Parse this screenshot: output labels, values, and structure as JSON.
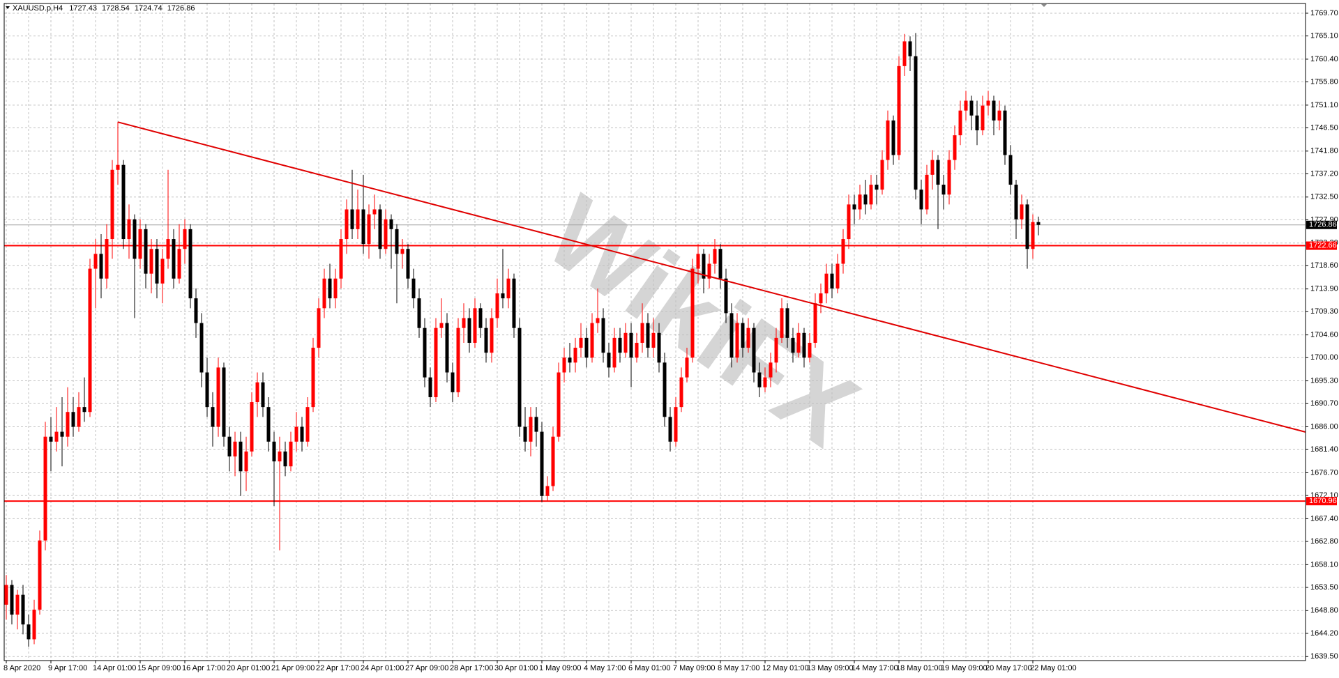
{
  "chart_data": {
    "type": "candlestick",
    "title": "XAUUSD.p,H4",
    "watermark": "WikiFX",
    "up_color": "#ff0000",
    "down_color": "#000000",
    "grid": true,
    "ylim": [
      1638.69,
      1771.67
    ],
    "yticks": [
      {
        "value": 1769.7,
        "label": "1769.70"
      },
      {
        "value": 1765.1,
        "label": "1765.10"
      },
      {
        "value": 1760.4,
        "label": "1760.40"
      },
      {
        "value": 1755.8,
        "label": "1755.80"
      },
      {
        "value": 1751.1,
        "label": "1751.10"
      },
      {
        "value": 1746.5,
        "label": "1746.50"
      },
      {
        "value": 1741.8,
        "label": "1741.80"
      },
      {
        "value": 1737.2,
        "label": "1737.20"
      },
      {
        "value": 1732.5,
        "label": "1732.50"
      },
      {
        "value": 1727.9,
        "label": "1727.90"
      },
      {
        "value": 1723.2,
        "label": "1723.20"
      },
      {
        "value": 1718.6,
        "label": "1718.60"
      },
      {
        "value": 1713.9,
        "label": "1713.90"
      },
      {
        "value": 1709.3,
        "label": "1709.30"
      },
      {
        "value": 1704.6,
        "label": "1704.60"
      },
      {
        "value": 1700,
        "label": "1700.00"
      },
      {
        "value": 1695.3,
        "label": "1695.30"
      },
      {
        "value": 1690.7,
        "label": "1690.70"
      },
      {
        "value": 1686,
        "label": "1686.00"
      },
      {
        "value": 1681.4,
        "label": "1681.40"
      },
      {
        "value": 1676.7,
        "label": "1676.70"
      },
      {
        "value": 1672.1,
        "label": "1672.10"
      },
      {
        "value": 1667.4,
        "label": "1667.40"
      },
      {
        "value": 1662.8,
        "label": "1662.80"
      },
      {
        "value": 1658.1,
        "label": "1658.10"
      },
      {
        "value": 1653.5,
        "label": "1653.50"
      },
      {
        "value": 1648.8,
        "label": "1648.80"
      },
      {
        "value": 1644.2,
        "label": "1644.20"
      },
      {
        "value": 1639.5,
        "label": "1639.50"
      }
    ],
    "levels": [
      {
        "value": 1722.66,
        "color": "#ff0000"
      },
      {
        "value": 1670.96,
        "color": "#ff0000"
      }
    ],
    "trendline": {
      "from": 1747.67,
      "to": 1684.94,
      "color": "#e00000"
    },
    "categories": [
      "8 Apr 2020",
      null,
      null,
      null,
      null,
      null,
      null,
      null,
      "9 Apr 17:00",
      null,
      null,
      null,
      null,
      null,
      null,
      null,
      "14 Apr 01:00",
      null,
      null,
      null,
      null,
      null,
      null,
      null,
      "15 Apr 09:00",
      null,
      null,
      null,
      null,
      null,
      null,
      null,
      "16 Apr 17:00",
      null,
      null,
      null,
      null,
      null,
      null,
      null,
      "20 Apr 01:00",
      null,
      null,
      null,
      null,
      null,
      null,
      null,
      "21 Apr 09:00",
      null,
      null,
      null,
      null,
      null,
      null,
      null,
      "22 Apr 17:00",
      null,
      null,
      null,
      null,
      null,
      null,
      null,
      "24 Apr 01:00",
      null,
      null,
      null,
      null,
      null,
      null,
      null,
      "27 Apr 09:00",
      null,
      null,
      null,
      null,
      null,
      null,
      null,
      "28 Apr 17:00",
      null,
      null,
      null,
      null,
      null,
      null,
      null,
      "30 Apr 01:00",
      null,
      null,
      null,
      null,
      null,
      null,
      null,
      "1 May 09:00",
      null,
      null,
      null,
      null,
      null,
      null,
      null,
      "4 May 17:00",
      null,
      null,
      null,
      null,
      null,
      null,
      null,
      "6 May 01:00",
      null,
      null,
      null,
      null,
      null,
      null,
      null,
      "7 May 09:00",
      null,
      null,
      null,
      null,
      null,
      null,
      null,
      "8 May 17:00",
      null,
      null,
      null,
      null,
      null,
      null,
      null,
      "12 May 01:00",
      null,
      null,
      null,
      null,
      null,
      null,
      null,
      "13 May 09:00",
      null,
      null,
      null,
      null,
      null,
      null,
      null,
      "14 May 17:00",
      null,
      null,
      null,
      null,
      null,
      null,
      null,
      "18 May 01:00",
      null,
      null,
      null,
      null,
      null,
      null,
      null,
      "19 May 09:00",
      null,
      null,
      null,
      null,
      null,
      null,
      null,
      "20 May 17:00",
      null,
      null,
      null,
      null,
      null,
      null,
      null,
      "22 May 01:00",
      null
    ],
    "candles": [
      [
        1650,
        1656,
        1647,
        1654
      ],
      [
        1654,
        1655,
        1646,
        1648
      ],
      [
        1648,
        1653,
        1645,
        1652
      ],
      [
        1652,
        1654,
        1644,
        1646
      ],
      [
        1646,
        1648,
        1641.5,
        1643
      ],
      [
        1643,
        1651,
        1642,
        1649
      ],
      [
        1649,
        1665,
        1648,
        1663
      ],
      [
        1663,
        1687,
        1661,
        1684
      ],
      [
        1684,
        1688,
        1677,
        1683
      ],
      [
        1683,
        1690,
        1681,
        1685
      ],
      [
        1685,
        1692,
        1678,
        1684
      ],
      [
        1684,
        1694,
        1682,
        1689
      ],
      [
        1689,
        1692,
        1684,
        1686
      ],
      [
        1686,
        1693,
        1685,
        1690
      ],
      [
        1690,
        1696,
        1687,
        1689
      ],
      [
        1689,
        1720,
        1688,
        1718
      ],
      [
        1718,
        1724,
        1710,
        1721
      ],
      [
        1721,
        1725,
        1712,
        1716
      ],
      [
        1716,
        1727,
        1714,
        1724
      ],
      [
        1724,
        1740,
        1720,
        1738
      ],
      [
        1738,
        1747.7,
        1735,
        1739
      ],
      [
        1739,
        1740,
        1722,
        1724
      ],
      [
        1724,
        1731,
        1720,
        1728
      ],
      [
        1728,
        1729,
        1708,
        1720
      ],
      [
        1720,
        1728,
        1718,
        1726
      ],
      [
        1726,
        1727,
        1714,
        1717
      ],
      [
        1717,
        1724,
        1713,
        1722
      ],
      [
        1722,
        1724,
        1712,
        1715
      ],
      [
        1715,
        1722,
        1711,
        1720
      ],
      [
        1720,
        1738,
        1718,
        1724
      ],
      [
        1724,
        1726,
        1714,
        1716
      ],
      [
        1716,
        1727,
        1715,
        1722
      ],
      [
        1722,
        1728,
        1719,
        1726
      ],
      [
        1726,
        1727,
        1710,
        1712
      ],
      [
        1712,
        1714,
        1704,
        1707
      ],
      [
        1707,
        1709,
        1694,
        1697
      ],
      [
        1697,
        1700,
        1688,
        1690
      ],
      [
        1690,
        1693,
        1682,
        1686
      ],
      [
        1686,
        1700,
        1684,
        1698
      ],
      [
        1698,
        1699,
        1682,
        1684
      ],
      [
        1684,
        1686,
        1677,
        1680
      ],
      [
        1680,
        1685,
        1676,
        1683
      ],
      [
        1683,
        1685,
        1672,
        1677
      ],
      [
        1677,
        1684,
        1673,
        1681
      ],
      [
        1681,
        1693,
        1680,
        1691
      ],
      [
        1691,
        1697,
        1688,
        1695
      ],
      [
        1695,
        1697,
        1688,
        1690
      ],
      [
        1690,
        1692,
        1681,
        1683
      ],
      [
        1683,
        1685,
        1670,
        1679
      ],
      [
        1679,
        1684,
        1661,
        1681
      ],
      [
        1681,
        1683,
        1676,
        1678
      ],
      [
        1678,
        1685,
        1677,
        1683
      ],
      [
        1683,
        1689,
        1681,
        1686
      ],
      [
        1686,
        1688,
        1681,
        1683
      ],
      [
        1683,
        1692,
        1682,
        1690
      ],
      [
        1690,
        1704,
        1689,
        1702
      ],
      [
        1702,
        1712,
        1700,
        1710
      ],
      [
        1710,
        1718,
        1708,
        1716
      ],
      [
        1716,
        1719,
        1710,
        1712
      ],
      [
        1712,
        1718,
        1710,
        1716
      ],
      [
        1716,
        1726,
        1714,
        1724
      ],
      [
        1724,
        1732,
        1721,
        1730
      ],
      [
        1730,
        1738,
        1724,
        1726
      ],
      [
        1726,
        1734,
        1724,
        1730
      ],
      [
        1730,
        1737,
        1721,
        1723
      ],
      [
        1723,
        1731,
        1720,
        1729
      ],
      [
        1729,
        1733,
        1726,
        1730
      ],
      [
        1730,
        1731,
        1720,
        1722
      ],
      [
        1722,
        1730,
        1721,
        1728
      ],
      [
        1728,
        1729,
        1718,
        1726
      ],
      [
        1726,
        1727,
        1711,
        1721
      ],
      [
        1721,
        1724,
        1718,
        1722
      ],
      [
        1722,
        1723,
        1714,
        1716
      ],
      [
        1716,
        1718,
        1710,
        1712
      ],
      [
        1712,
        1714,
        1704,
        1706
      ],
      [
        1706,
        1708,
        1694,
        1696
      ],
      [
        1696,
        1698,
        1690,
        1692
      ],
      [
        1692,
        1708,
        1691,
        1706
      ],
      [
        1706,
        1712,
        1704,
        1707
      ],
      [
        1707,
        1709,
        1695,
        1697
      ],
      [
        1697,
        1699,
        1691,
        1693
      ],
      [
        1693,
        1708,
        1692,
        1706
      ],
      [
        1706,
        1711,
        1703,
        1708
      ],
      [
        1708,
        1710,
        1701,
        1703
      ],
      [
        1703,
        1712,
        1702,
        1710
      ],
      [
        1710,
        1711,
        1704,
        1706
      ],
      [
        1706,
        1708,
        1699,
        1701
      ],
      [
        1701,
        1710,
        1699,
        1708
      ],
      [
        1708,
        1716,
        1706,
        1713
      ],
      [
        1713,
        1722,
        1710,
        1712
      ],
      [
        1712,
        1718,
        1710,
        1716
      ],
      [
        1716,
        1717,
        1704,
        1706
      ],
      [
        1706,
        1708,
        1684,
        1686
      ],
      [
        1686,
        1690,
        1681,
        1683
      ],
      [
        1683,
        1690,
        1680,
        1688
      ],
      [
        1688,
        1690,
        1682,
        1685
      ],
      [
        1685,
        1687,
        1670.8,
        1672
      ],
      [
        1672,
        1676,
        1671,
        1674
      ],
      [
        1674,
        1686,
        1673,
        1684
      ],
      [
        1684,
        1699,
        1683,
        1697
      ],
      [
        1697,
        1702,
        1695,
        1700
      ],
      [
        1700,
        1703,
        1697,
        1699
      ],
      [
        1699,
        1704,
        1697,
        1702
      ],
      [
        1702,
        1707,
        1700,
        1704
      ],
      [
        1704,
        1706,
        1698,
        1700
      ],
      [
        1700,
        1709,
        1699,
        1707
      ],
      [
        1707,
        1714,
        1705,
        1708
      ],
      [
        1708,
        1710,
        1699,
        1701
      ],
      [
        1701,
        1703,
        1696,
        1698
      ],
      [
        1698,
        1706,
        1697,
        1704
      ],
      [
        1704,
        1706,
        1699,
        1701
      ],
      [
        1701,
        1707,
        1700,
        1705
      ],
      [
        1705,
        1707,
        1694,
        1700
      ],
      [
        1700,
        1705,
        1699,
        1703
      ],
      [
        1703,
        1711,
        1701,
        1707
      ],
      [
        1707,
        1709,
        1700,
        1702
      ],
      [
        1702,
        1708,
        1700,
        1705
      ],
      [
        1705,
        1707,
        1697,
        1699
      ],
      [
        1699,
        1701,
        1686,
        1688
      ],
      [
        1688,
        1690,
        1681,
        1683
      ],
      [
        1683,
        1692,
        1682,
        1690
      ],
      [
        1690,
        1698,
        1689,
        1696
      ],
      [
        1696,
        1702,
        1695,
        1700
      ],
      [
        1700,
        1720,
        1699,
        1718
      ],
      [
        1718,
        1723,
        1715,
        1721
      ],
      [
        1721,
        1722,
        1713,
        1716
      ],
      [
        1716,
        1721,
        1714,
        1719
      ],
      [
        1719,
        1724,
        1717,
        1722
      ],
      [
        1722,
        1723,
        1714,
        1716
      ],
      [
        1716,
        1718,
        1707,
        1709
      ],
      [
        1709,
        1711,
        1698,
        1700
      ],
      [
        1700,
        1709,
        1699,
        1707
      ],
      [
        1707,
        1708,
        1700,
        1702
      ],
      [
        1702,
        1708,
        1701,
        1706
      ],
      [
        1706,
        1707,
        1695,
        1697
      ],
      [
        1697,
        1699,
        1692,
        1694
      ],
      [
        1694,
        1698,
        1693,
        1696
      ],
      [
        1696,
        1701,
        1694,
        1699
      ],
      [
        1699,
        1706,
        1697,
        1704
      ],
      [
        1704,
        1712,
        1703,
        1710
      ],
      [
        1710,
        1711,
        1702,
        1704
      ],
      [
        1704,
        1706,
        1699,
        1701
      ],
      [
        1701,
        1707,
        1700,
        1705
      ],
      [
        1705,
        1706,
        1698,
        1700
      ],
      [
        1700,
        1705,
        1699,
        1703
      ],
      [
        1703,
        1713,
        1702,
        1711
      ],
      [
        1711,
        1715,
        1709,
        1713
      ],
      [
        1713,
        1719,
        1711,
        1717
      ],
      [
        1717,
        1719,
        1712,
        1714
      ],
      [
        1714,
        1721,
        1713,
        1719
      ],
      [
        1719,
        1726,
        1717,
        1724
      ],
      [
        1724,
        1733,
        1722,
        1731
      ],
      [
        1731,
        1733,
        1727,
        1730
      ],
      [
        1730,
        1735,
        1728,
        1733
      ],
      [
        1733,
        1736,
        1729,
        1731
      ],
      [
        1731,
        1737,
        1730,
        1735
      ],
      [
        1735,
        1737,
        1731,
        1734
      ],
      [
        1734,
        1742,
        1733,
        1740
      ],
      [
        1740,
        1750,
        1738,
        1748
      ],
      [
        1748,
        1749,
        1739,
        1741
      ],
      [
        1741,
        1761,
        1740,
        1759
      ],
      [
        1759,
        1765.5,
        1757,
        1764
      ],
      [
        1764,
        1765,
        1758,
        1761
      ],
      [
        1761,
        1765.7,
        1732,
        1734
      ],
      [
        1734,
        1736,
        1727,
        1730
      ],
      [
        1730,
        1739,
        1729,
        1737
      ],
      [
        1737,
        1742,
        1734,
        1740
      ],
      [
        1740,
        1741,
        1726,
        1735
      ],
      [
        1735,
        1737,
        1730,
        1733
      ],
      [
        1733,
        1742,
        1731,
        1740
      ],
      [
        1740,
        1747,
        1738,
        1745
      ],
      [
        1745,
        1752,
        1743,
        1750
      ],
      [
        1750,
        1754,
        1748,
        1752
      ],
      [
        1752,
        1753,
        1746,
        1749
      ],
      [
        1749,
        1752,
        1743,
        1746
      ],
      [
        1746,
        1753,
        1745,
        1751
      ],
      [
        1751,
        1754,
        1749,
        1752
      ],
      [
        1752,
        1753,
        1745,
        1748
      ],
      [
        1748,
        1752,
        1746,
        1750
      ],
      [
        1750,
        1751,
        1739,
        1741
      ],
      [
        1741,
        1743,
        1733,
        1735
      ],
      [
        1735,
        1736,
        1724,
        1728
      ],
      [
        1728,
        1733,
        1726,
        1731
      ],
      [
        1731,
        1732,
        1718,
        1722
      ],
      [
        1722,
        1729,
        1720,
        1727.43
      ],
      [
        1727.43,
        1728.54,
        1724.74,
        1726.86
      ]
    ]
  }
}
